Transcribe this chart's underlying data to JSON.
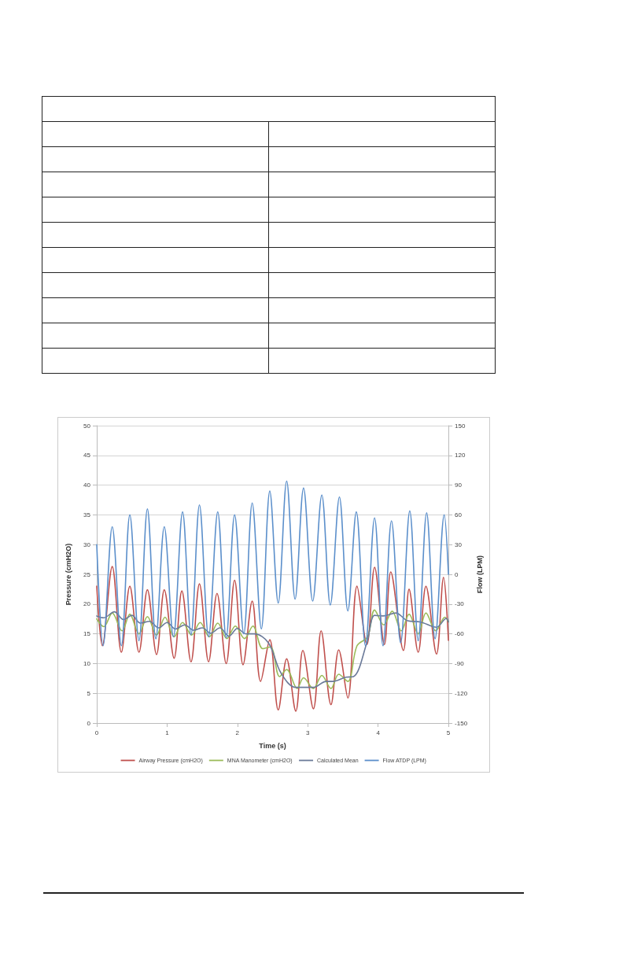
{
  "chart_data": {
    "type": "line",
    "xlabel": "Time (s)",
    "ylabel": "Pressure (cmH2O)",
    "y2label": "Flow (LPM)",
    "xlim": [
      0,
      5
    ],
    "xticks": [
      0,
      1,
      2,
      3,
      4,
      5
    ],
    "ylim": [
      0,
      50
    ],
    "yticks": [
      0,
      5,
      10,
      15,
      20,
      25,
      30,
      35,
      40,
      45,
      50
    ],
    "y2lim": [
      -150,
      150
    ],
    "y2ticks": [
      -150,
      -120,
      -90,
      -60,
      -30,
      0,
      30,
      60,
      90,
      120,
      150
    ],
    "grid": "y",
    "legend": "bottom",
    "marker": "none",
    "line_style": "solid",
    "series": [
      {
        "name": "Airway Pressure (cmH2O)",
        "color": "#c0504d",
        "x": [
          0,
          0.08,
          0.22,
          0.35,
          0.47,
          0.6,
          0.72,
          0.85,
          0.96,
          1.1,
          1.21,
          1.34,
          1.46,
          1.59,
          1.71,
          1.84,
          1.96,
          2.08,
          2.21,
          2.33,
          2.46,
          2.58,
          2.7,
          2.83,
          2.93,
          3.08,
          3.19,
          3.33,
          3.44,
          3.57,
          3.7,
          3.84,
          3.95,
          4.09,
          4.18,
          4.36,
          4.44,
          4.57,
          4.68,
          4.83,
          4.93,
          5
        ],
        "values": [
          23,
          13,
          26.3,
          11.9,
          23,
          11.9,
          22.4,
          11.5,
          22.4,
          10.9,
          22.2,
          10.3,
          23.4,
          10.3,
          21.8,
          10,
          24,
          9.8,
          20.5,
          7,
          14,
          2.2,
          10.8,
          2,
          12.2,
          2.4,
          15.5,
          3.1,
          12.3,
          4.2,
          23,
          13.2,
          26.2,
          13.2,
          25.4,
          12.2,
          22.5,
          11.9,
          23,
          11.6,
          24.5,
          13.9
        ]
      },
      {
        "name": "MNA Manometer (cmH2O)",
        "color": "#9bbb59",
        "x": [
          0,
          0.1,
          0.22,
          0.36,
          0.47,
          0.6,
          0.72,
          0.85,
          0.97,
          1.1,
          1.22,
          1.35,
          1.47,
          1.6,
          1.72,
          1.85,
          1.97,
          2.1,
          2.22,
          2.36,
          2.47,
          2.6,
          2.7,
          2.85,
          2.94,
          3.08,
          3.2,
          3.33,
          3.44,
          3.57,
          3.7,
          3.85,
          3.95,
          4.08,
          4.2,
          4.33,
          4.44,
          4.57,
          4.68,
          4.82,
          4.95,
          5
        ],
        "values": [
          17.5,
          16.2,
          18.5,
          15.5,
          18.3,
          15,
          17.9,
          14.8,
          17.8,
          14.5,
          16.9,
          14.8,
          16.9,
          14.5,
          16.8,
          14.2,
          16.3,
          14.2,
          16.3,
          12.5,
          12.8,
          7.8,
          9,
          5.8,
          7.6,
          5.8,
          8,
          5.8,
          8.2,
          7,
          13,
          14.5,
          19,
          16.5,
          18.8,
          15.5,
          18.3,
          15,
          18.5,
          15.5,
          17.8,
          17
        ]
      },
      {
        "name": "Calculated Mean",
        "color": "#6b7a99",
        "x": [
          0,
          0.1,
          0.25,
          0.38,
          0.5,
          0.62,
          0.75,
          0.88,
          1,
          1.12,
          1.25,
          1.38,
          1.5,
          1.62,
          1.75,
          1.88,
          2,
          2.12,
          2.24,
          2.44,
          2.62,
          2.83,
          3.08,
          3.26,
          3.36,
          3.54,
          3.65,
          3.84,
          3.95,
          4.07,
          4.25,
          4.42,
          4.6,
          4.83,
          4.97,
          5
        ],
        "values": [
          18,
          17.7,
          18.7,
          17.4,
          18.1,
          16.8,
          17.1,
          16,
          16.9,
          15.8,
          16.5,
          15.6,
          16,
          15.1,
          16,
          14.6,
          15.9,
          15,
          15,
          13.5,
          8.4,
          6,
          6,
          7,
          7,
          7.7,
          7.8,
          13.5,
          18.1,
          18,
          18.5,
          17.2,
          17,
          16.1,
          17.6,
          17
        ]
      },
      {
        "name": "Flow ATDP (LPM)",
        "color": "#5b8fcb",
        "axis": "y2",
        "x": [
          0,
          0.09,
          0.22,
          0.35,
          0.47,
          0.6,
          0.72,
          0.84,
          0.96,
          1.09,
          1.22,
          1.34,
          1.46,
          1.59,
          1.72,
          1.84,
          1.96,
          2.09,
          2.21,
          2.34,
          2.46,
          2.58,
          2.7,
          2.82,
          2.94,
          3.07,
          3.2,
          3.32,
          3.45,
          3.57,
          3.69,
          3.82,
          3.95,
          4.07,
          4.19,
          4.32,
          4.45,
          4.57,
          4.69,
          4.81,
          4.94,
          5
        ],
        "values": [
          30,
          -72,
          48,
          -72,
          60,
          -67,
          66,
          -65,
          48,
          -63,
          63,
          -61,
          70,
          -63,
          63,
          -64,
          60,
          -60,
          72,
          -55,
          84,
          -29,
          94,
          -25,
          87,
          -27,
          80,
          -31,
          78,
          -37,
          63,
          -72,
          57,
          -72,
          54,
          -69,
          64,
          -67,
          62,
          -65,
          60,
          0
        ]
      }
    ]
  }
}
